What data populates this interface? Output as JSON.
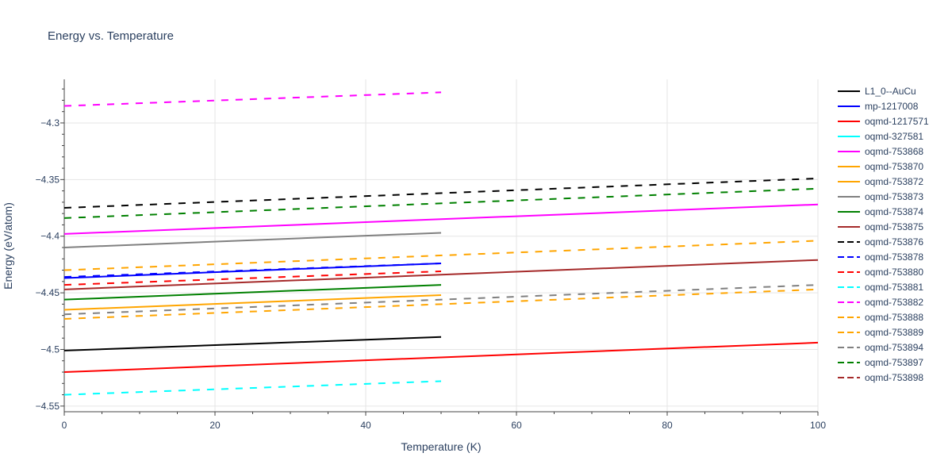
{
  "chart_data": {
    "type": "line",
    "title": "Energy vs. Temperature",
    "xlabel": "Temperature (K)",
    "ylabel": "Energy (eV/atom)",
    "xlim": [
      0,
      100
    ],
    "ylim": [
      -4.555,
      -4.2615
    ],
    "x_ticks": [
      0,
      20,
      40,
      60,
      80,
      100
    ],
    "y_ticks": [
      -4.55,
      -4.5,
      -4.45,
      -4.4,
      -4.35,
      -4.3
    ],
    "y_tick_labels": [
      "−4.55",
      "−4.5",
      "−4.45",
      "−4.4",
      "−4.35",
      "−4.3"
    ],
    "grid": true,
    "legend_position": "right",
    "series": [
      {
        "name": "L1_0--AuCu",
        "color": "#000000",
        "dash": "solid",
        "x": [
          0,
          50
        ],
        "y": [
          -4.501,
          -4.489
        ]
      },
      {
        "name": "mp-1217008",
        "color": "#0000ff",
        "dash": "solid",
        "x": [
          0,
          50
        ],
        "y": [
          -4.437,
          -4.424
        ]
      },
      {
        "name": "oqmd-1217571",
        "color": "#ff0000",
        "dash": "solid",
        "x": [
          0,
          100
        ],
        "y": [
          -4.52,
          -4.494
        ]
      },
      {
        "name": "oqmd-327581",
        "color": "#00ffff",
        "dash": "solid",
        "x": [],
        "y": []
      },
      {
        "name": "oqmd-753868",
        "color": "#ff00ff",
        "dash": "solid",
        "x": [
          0,
          100
        ],
        "y": [
          -4.398,
          -4.372
        ]
      },
      {
        "name": "oqmd-753870",
        "color": "#ffa500",
        "dash": "solid",
        "x": [
          0,
          50
        ],
        "y": [
          -4.465,
          -4.452
        ]
      },
      {
        "name": "oqmd-753872",
        "color": "#ffa500",
        "dash": "solid",
        "x": [],
        "y": []
      },
      {
        "name": "oqmd-753873",
        "color": "#808080",
        "dash": "solid",
        "x": [
          0,
          50
        ],
        "y": [
          -4.41,
          -4.397
        ]
      },
      {
        "name": "oqmd-753874",
        "color": "#008000",
        "dash": "solid",
        "x": [
          0,
          50
        ],
        "y": [
          -4.456,
          -4.443
        ]
      },
      {
        "name": "oqmd-753875",
        "color": "#a52a2a",
        "dash": "solid",
        "x": [
          0,
          100
        ],
        "y": [
          -4.447,
          -4.421
        ]
      },
      {
        "name": "oqmd-753876",
        "color": "#000000",
        "dash": "dash",
        "x": [
          0,
          100
        ],
        "y": [
          -4.375,
          -4.349
        ]
      },
      {
        "name": "oqmd-753878",
        "color": "#0000ff",
        "dash": "dash",
        "x": [
          0,
          50
        ],
        "y": [
          -4.436,
          -4.424
        ]
      },
      {
        "name": "oqmd-753880",
        "color": "#ff0000",
        "dash": "dash",
        "x": [
          0,
          50
        ],
        "y": [
          -4.443,
          -4.431
        ]
      },
      {
        "name": "oqmd-753881",
        "color": "#00ffff",
        "dash": "dash",
        "x": [
          0,
          50
        ],
        "y": [
          -4.54,
          -4.528
        ]
      },
      {
        "name": "oqmd-753882",
        "color": "#ff00ff",
        "dash": "dash",
        "x": [
          0,
          50
        ],
        "y": [
          -4.285,
          -4.273
        ]
      },
      {
        "name": "oqmd-753888",
        "color": "#ffa500",
        "dash": "dash",
        "x": [
          0,
          100
        ],
        "y": [
          -4.43,
          -4.404
        ]
      },
      {
        "name": "oqmd-753889",
        "color": "#ffa500",
        "dash": "dash",
        "x": [
          0,
          100
        ],
        "y": [
          -4.473,
          -4.447
        ]
      },
      {
        "name": "oqmd-753894",
        "color": "#808080",
        "dash": "dash",
        "x": [
          0,
          100
        ],
        "y": [
          -4.469,
          -4.443
        ]
      },
      {
        "name": "oqmd-753897",
        "color": "#008000",
        "dash": "dash",
        "x": [
          0,
          100
        ],
        "y": [
          -4.384,
          -4.358
        ]
      },
      {
        "name": "oqmd-753898",
        "color": "#a52a2a",
        "dash": "dash",
        "x": [],
        "y": []
      }
    ]
  }
}
